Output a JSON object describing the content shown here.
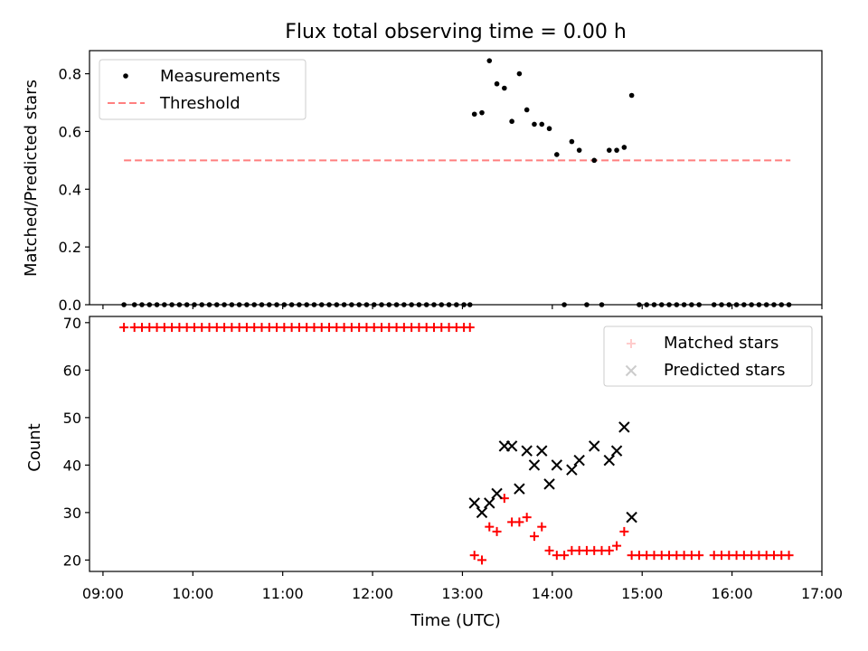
{
  "chart_data": [
    {
      "type": "scatter",
      "title": "Flux total observing time = 0.00 h",
      "xlabel": "",
      "ylabel": "Matched/Predicted stars",
      "xlim": [
        "08:51",
        "17:00"
      ],
      "ylim": [
        0,
        0.88
      ],
      "yticks": [
        "0.0",
        "0.2",
        "0.4",
        "0.6",
        "0.8"
      ],
      "legend": {
        "placement": "top-left",
        "entries": [
          "Measurements",
          "Threshold"
        ]
      },
      "threshold": {
        "name": "Threshold",
        "value": 0.5,
        "x_start": "09:14",
        "x_end": "16:39",
        "color": "#ff7f7f"
      },
      "measurements": {
        "name": "Measurements",
        "color": "#000000",
        "x": [
          "09:14",
          "09:21",
          "09:26",
          "09:31",
          "09:36",
          "09:41",
          "09:46",
          "09:51",
          "09:56",
          "10:01",
          "10:06",
          "10:11",
          "10:16",
          "10:21",
          "10:26",
          "10:31",
          "10:36",
          "10:41",
          "10:46",
          "10:51",
          "10:56",
          "11:01",
          "11:06",
          "11:11",
          "11:16",
          "11:21",
          "11:26",
          "11:31",
          "11:36",
          "11:41",
          "11:46",
          "11:51",
          "11:56",
          "12:01",
          "12:06",
          "12:11",
          "12:16",
          "12:21",
          "12:26",
          "12:31",
          "12:36",
          "12:41",
          "12:46",
          "12:51",
          "12:56",
          "13:01",
          "13:05",
          "13:08",
          "13:13",
          "13:18",
          "13:23",
          "13:28",
          "13:33",
          "13:38",
          "13:43",
          "13:48",
          "13:53",
          "13:58",
          "14:03",
          "14:08",
          "14:13",
          "14:18",
          "14:23",
          "14:28",
          "14:33",
          "14:38",
          "14:43",
          "14:48",
          "14:53",
          "14:58",
          "15:03",
          "15:08",
          "15:13",
          "15:18",
          "15:23",
          "15:28",
          "15:33",
          "15:38",
          "15:48",
          "15:53",
          "15:58",
          "16:03",
          "16:08",
          "16:13",
          "16:18",
          "16:23",
          "16:28",
          "16:33",
          "16:38"
        ],
        "y": [
          0,
          0,
          0,
          0,
          0,
          0,
          0,
          0,
          0,
          0,
          0,
          0,
          0,
          0,
          0,
          0,
          0,
          0,
          0,
          0,
          0,
          0,
          0,
          0,
          0,
          0,
          0,
          0,
          0,
          0,
          0,
          0,
          0,
          0,
          0,
          0,
          0,
          0,
          0,
          0,
          0,
          0,
          0,
          0,
          0,
          0,
          0,
          0.66,
          0.665,
          0.845,
          0.765,
          0.75,
          0.635,
          0.8,
          0.675,
          0.625,
          0.625,
          0.61,
          0.52,
          0,
          0.565,
          0.535,
          0,
          0.5,
          0,
          0.535,
          0.535,
          0.545,
          0.725,
          0,
          0,
          0,
          0,
          0,
          0,
          0,
          0,
          0,
          0,
          0,
          0,
          0,
          0,
          0,
          0,
          0,
          0,
          0,
          0
        ]
      }
    },
    {
      "type": "scatter",
      "title": "",
      "xlabel": "Time (UTC)",
      "ylabel": "Count",
      "xlim": [
        "08:51",
        "17:00"
      ],
      "ylim": [
        17.6,
        71.3
      ],
      "yticks": [
        "20",
        "30",
        "40",
        "50",
        "60",
        "70"
      ],
      "xticks": [
        "09:00",
        "10:00",
        "11:00",
        "12:00",
        "13:00",
        "14:00",
        "15:00",
        "16:00",
        "17:00"
      ],
      "legend": {
        "placement": "top-right",
        "entries": [
          "Matched stars",
          "Predicted stars"
        ]
      },
      "series": [
        {
          "name": "Matched stars",
          "marker": "plus",
          "color": "#ff0000",
          "x": [
            "09:14",
            "09:21",
            "09:26",
            "09:31",
            "09:36",
            "09:41",
            "09:46",
            "09:51",
            "09:56",
            "10:01",
            "10:06",
            "10:11",
            "10:16",
            "10:21",
            "10:26",
            "10:31",
            "10:36",
            "10:41",
            "10:46",
            "10:51",
            "10:56",
            "11:01",
            "11:06",
            "11:11",
            "11:16",
            "11:21",
            "11:26",
            "11:31",
            "11:36",
            "11:41",
            "11:46",
            "11:51",
            "11:56",
            "12:01",
            "12:06",
            "12:11",
            "12:16",
            "12:21",
            "12:26",
            "12:31",
            "12:36",
            "12:41",
            "12:46",
            "12:51",
            "12:56",
            "13:01",
            "13:05",
            "13:08",
            "13:13",
            "13:18",
            "13:23",
            "13:28",
            "13:33",
            "13:38",
            "13:43",
            "13:48",
            "13:53",
            "13:58",
            "14:03",
            "14:08",
            "14:13",
            "14:18",
            "14:23",
            "14:28",
            "14:33",
            "14:38",
            "14:43",
            "14:48",
            "14:53",
            "14:58",
            "15:03",
            "15:08",
            "15:13",
            "15:18",
            "15:23",
            "15:28",
            "15:33",
            "15:38",
            "15:48",
            "15:53",
            "15:58",
            "16:03",
            "16:08",
            "16:13",
            "16:18",
            "16:23",
            "16:28",
            "16:33",
            "16:38"
          ],
          "y": [
            69,
            69,
            69,
            69,
            69,
            69,
            69,
            69,
            69,
            69,
            69,
            69,
            69,
            69,
            69,
            69,
            69,
            69,
            69,
            69,
            69,
            69,
            69,
            69,
            69,
            69,
            69,
            69,
            69,
            69,
            69,
            69,
            69,
            69,
            69,
            69,
            69,
            69,
            69,
            69,
            69,
            69,
            69,
            69,
            69,
            69,
            69,
            21,
            20,
            27,
            26,
            33,
            28,
            28,
            29,
            25,
            27,
            22,
            21,
            21,
            22,
            22,
            22,
            22,
            22,
            22,
            23,
            26,
            21,
            21,
            21,
            21,
            21,
            21,
            21,
            21,
            21,
            21,
            21,
            21,
            21,
            21,
            21,
            21,
            21,
            21,
            21,
            21,
            21
          ]
        },
        {
          "name": "Predicted stars",
          "marker": "x",
          "color": "#000000",
          "x": [
            "13:08",
            "13:13",
            "13:18",
            "13:23",
            "13:28",
            "13:33",
            "13:38",
            "13:43",
            "13:48",
            "13:53",
            "13:58",
            "14:03",
            "14:13",
            "14:18",
            "14:28",
            "14:38",
            "14:43",
            "14:48",
            "14:53"
          ],
          "y": [
            32,
            30,
            32,
            34,
            44,
            44,
            35,
            43,
            40,
            43,
            36,
            40,
            39,
            41,
            44,
            41,
            43,
            48,
            29
          ]
        }
      ]
    }
  ]
}
